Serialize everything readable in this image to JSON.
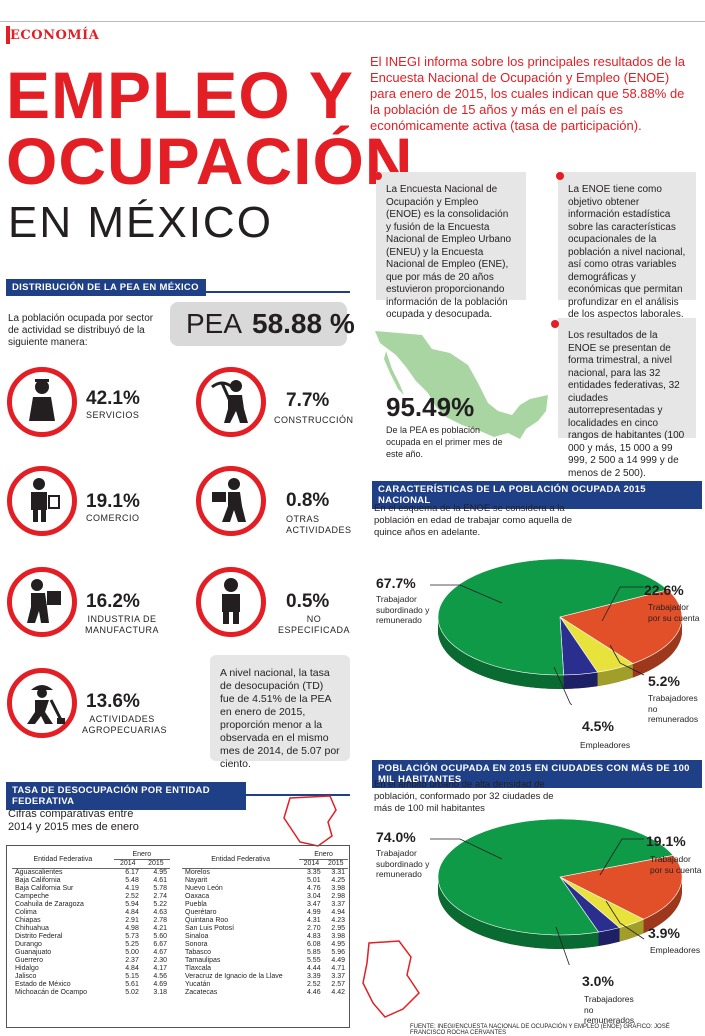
{
  "section": "ECONOMÍA",
  "title": {
    "line1": "EMPLEO Y",
    "line2": "OCUPACIÓN",
    "line3": "EN MÉXICO"
  },
  "intro": "El INEGI informa sobre los principales resultados de la Encuesta Nacional de Ocupación y Empleo (ENOE) para enero de 2015, los cuales indican que 58.88% de la población de 15 años y más en el país es económicamente activa (tasa de participación).",
  "box1": "La Encuesta Nacional de Ocupación y Empleo (ENOE) es la consolidación y fusión de la Encuesta Nacional de Empleo Urbano (ENEU) y la Encuesta Nacional de Empleo (ENE), que por más de 20 años estuvieron proporcionando información de la población ocupada y desocupada.",
  "box2": "La ENOE tiene como objetivo obtener información estadística sobre las características ocupacionales de la población a nivel nacional, así como otras variables demográficas y económicas que permitan profundizar en el análisis de los aspectos laborales.",
  "box3": "Los resultados de la ENOE se presentan de forma trimestral, a nivel nacional, para las 32 entidades federativas, 32 ciudades autorrepresentadas y localidades en cinco rangos de habitantes (100 000 y más, 15 000 a 99 999, 2 500 a 14 999 y de menos de 2 500).",
  "dist_header": "DISTRIBUCIÓN DE LA PEA EN MÉXICO",
  "dist_intro": "La población ocupada por sector de actividad se distribuyó de la siguiente manera:",
  "pea_label": "PEA",
  "pea_value": "58.88 %",
  "sectors": [
    {
      "pct": "42.1%",
      "label": "SERVICIOS",
      "icon": "services-icon"
    },
    {
      "pct": "7.7%",
      "label": "CONSTRUCCIÓN",
      "icon": "construction-icon"
    },
    {
      "pct": "19.1%",
      "label": "COMERCIO",
      "icon": "commerce-icon"
    },
    {
      "pct": "0.8%",
      "label": "OTRAS ACTIVIDADES",
      "icon": "other-activities-icon"
    },
    {
      "pct": "16.2%",
      "label": "INDUSTRIA DE MANUFACTURA",
      "icon": "manufacturing-icon"
    },
    {
      "pct": "0.5%",
      "label": "NO ESPECIFICADA",
      "icon": "unspecified-icon"
    },
    {
      "pct": "13.6%",
      "label": "ACTIVIDADES AGROPECUARIAS",
      "icon": "agriculture-icon"
    }
  ],
  "td_note": "A nivel nacional, la tasa de desocupación (TD) fue de 4.51% de la PEA en enero de 2015, proporción menor a la observada en el mismo mes de 2014, de 5.07 por ciento.",
  "map_pct": "95.49%",
  "map_caption": "De la PEA es población ocupada en el primer mes de este año.",
  "colors": {
    "red": "#e31e24",
    "navy": "#1f3f86",
    "green": "#0f9a48",
    "orange": "#e2502a",
    "yellow": "#e8e23c",
    "blue": "#2a2f8f",
    "map": "#a8d5a2"
  },
  "chart_data": [
    {
      "type": "pie",
      "title": "CARACTERÍSTICAS DE LA POBLACIÓN OCUPADA 2015 NACIONAL",
      "subtitle": "En el esquema de la ENOE se considera a la población en edad de trabajar como aquella de quince años en adelante.",
      "slices": [
        {
          "label": "Trabajador subordinado y remunerado",
          "value": 67.7,
          "display": "67.7%",
          "color": "#0f9a48"
        },
        {
          "label": "Trabajador por su cuenta",
          "value": 22.6,
          "display": "22.6%",
          "color": "#e2502a"
        },
        {
          "label": "Trabajadores no remunerados",
          "value": 5.2,
          "display": "5.2%",
          "color": "#e8e23c"
        },
        {
          "label": "Empleadores",
          "value": 4.5,
          "display": "4.5%",
          "color": "#2a2f8f"
        }
      ]
    },
    {
      "type": "pie",
      "title": "POBLACIÓN OCUPADA EN 2015 EN CIUDADES CON MÁS DE 100 MIL HABITANTES",
      "subtitle": "En el ámbito urbano de alta densidad de población, conformado por 32 ciudades de más de 100 mil habitantes",
      "slices": [
        {
          "label": "Trabajador subordinado y remunerado",
          "value": 74.0,
          "display": "74.0%",
          "color": "#0f9a48"
        },
        {
          "label": "Trabajador por su cuenta",
          "value": 19.1,
          "display": "19.1%",
          "color": "#e2502a"
        },
        {
          "label": "Empleadores",
          "value": 3.9,
          "display": "3.9%",
          "color": "#e8e23c"
        },
        {
          "label": "Trabajadores no remunerados",
          "value": 3.0,
          "display": "3.0%",
          "color": "#2a2f8f"
        }
      ]
    },
    {
      "type": "table",
      "title": "TASA DE DESOCUPACIÓN POR ENTIDAD FEDERATIVA",
      "subtitle": "Cifras comparativas entre 2014 y 2015 mes de enero",
      "columns": [
        "Entidad Federativa",
        "Enero",
        "2014",
        "2015"
      ],
      "left": [
        [
          "Aguascalientes",
          "6.17",
          "4.95"
        ],
        [
          "Baja California",
          "5.48",
          "4.61"
        ],
        [
          "Baja California Sur",
          "4.19",
          "5.78"
        ],
        [
          "Campeche",
          "2.52",
          "2.74"
        ],
        [
          "Coahuila de Zaragoza",
          "5.94",
          "5.22"
        ],
        [
          "Colima",
          "4.84",
          "4.63"
        ],
        [
          "Chiapas",
          "2.91",
          "2.78"
        ],
        [
          "Chihuahua",
          "4.98",
          "4.21"
        ],
        [
          "Distrito Federal",
          "5.73",
          "5.60"
        ],
        [
          "Durango",
          "5.25",
          "6.67"
        ],
        [
          "Guanajuato",
          "5.00",
          "4.67"
        ],
        [
          "Guerrero",
          "2.37",
          "2.30"
        ],
        [
          "Hidalgo",
          "4.84",
          "4.17"
        ],
        [
          "Jalisco",
          "5.15",
          "4.56"
        ],
        [
          "Estado de México",
          "5.61",
          "4.69"
        ],
        [
          "Michoacán de Ocampo",
          "5.02",
          "3.18"
        ]
      ],
      "right": [
        [
          "Morelos",
          "3.35",
          "3.31"
        ],
        [
          "Nayarit",
          "5.01",
          "4.25"
        ],
        [
          "Nuevo León",
          "4.76",
          "3.98"
        ],
        [
          "Oaxaca",
          "3.04",
          "2.98"
        ],
        [
          "Puebla",
          "3.47",
          "3.37"
        ],
        [
          "Querétaro",
          "4.99",
          "4.94"
        ],
        [
          "Quintana Roo",
          "4.31",
          "4.23"
        ],
        [
          "San Luis Potosí",
          "2.70",
          "2.95"
        ],
        [
          "Sinaloa",
          "4.83",
          "3.98"
        ],
        [
          "Sonora",
          "6.08",
          "4.95"
        ],
        [
          "Tabasco",
          "5.85",
          "5.96"
        ],
        [
          "Tamaulipas",
          "5.55",
          "4.49"
        ],
        [
          "Tlaxcala",
          "4.44",
          "4.71"
        ],
        [
          "Veracruz de Ignacio de la Llave",
          "3.39",
          "3.37"
        ],
        [
          "Yucatán",
          "2.52",
          "2.57"
        ],
        [
          "Zacatecas",
          "4.46",
          "4.42"
        ]
      ]
    }
  ],
  "source": "FUENTE: INEGI/ENCUESTA NACIONAL DE OCUPACIÓN Y EMPLEO (ENOE) GRÁFICO: JOSÉ FRANCISCO ROCHA CERVANTES"
}
